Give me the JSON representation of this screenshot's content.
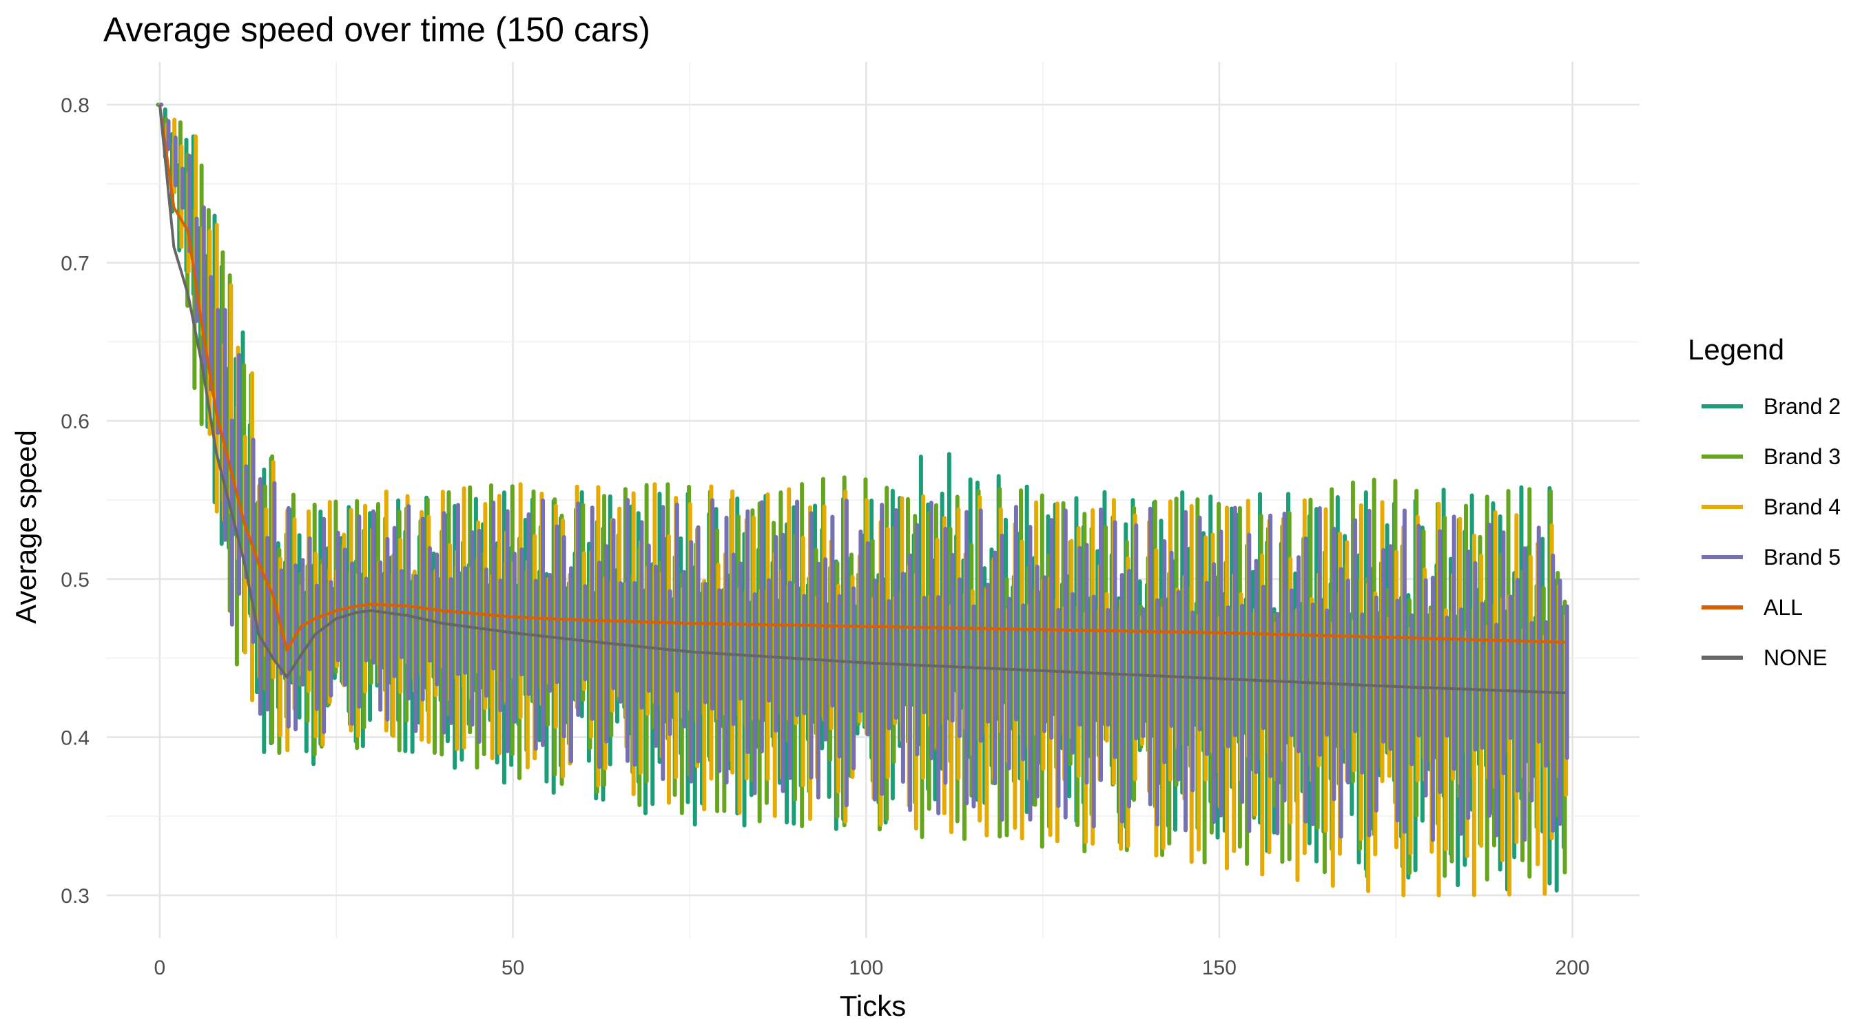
{
  "chart_data": {
    "type": "line",
    "title": "Average speed over time (150 cars)",
    "xlabel": "Ticks",
    "ylabel": "Average speed",
    "xlim": [
      -7.5,
      209.5
    ],
    "ylim": [
      0.273,
      0.827
    ],
    "x_ticks": [
      0,
      50,
      100,
      150,
      200
    ],
    "x_tick_labels": [
      "0",
      "50",
      "100",
      "150",
      "200"
    ],
    "y_ticks": [
      0.3,
      0.4,
      0.5,
      0.6,
      0.7,
      0.8
    ],
    "y_tick_labels": [
      "0.3",
      "0.4",
      "0.5",
      "0.6",
      "0.7",
      "0.8"
    ],
    "grid": true,
    "legend_title": "Legend",
    "legend_position": "right",
    "x_range": [
      0,
      199
    ],
    "series": [
      {
        "name": "Brand 2",
        "color": "#1b9e77",
        "style": "oscillating vertical segments per tick",
        "envelope": {
          "x": [
            0,
            5,
            10,
            15,
            20,
            30,
            50,
            75,
            100,
            110,
            125,
            150,
            175,
            199
          ],
          "high": [
            0.8,
            0.785,
            0.7,
            0.59,
            0.54,
            0.55,
            0.555,
            0.555,
            0.55,
            0.585,
            0.555,
            0.555,
            0.555,
            0.56
          ],
          "low": [
            0.8,
            0.63,
            0.49,
            0.39,
            0.38,
            0.395,
            0.37,
            0.345,
            0.34,
            0.36,
            0.35,
            0.335,
            0.31,
            0.3
          ]
        }
      },
      {
        "name": "Brand 3",
        "color": "#66a61e",
        "style": "oscillating vertical segments per tick",
        "envelope": {
          "x": [
            0,
            5,
            10,
            15,
            20,
            30,
            50,
            75,
            100,
            125,
            150,
            175,
            199
          ],
          "high": [
            0.8,
            0.785,
            0.71,
            0.59,
            0.545,
            0.555,
            0.56,
            0.56,
            0.565,
            0.555,
            0.55,
            0.565,
            0.555
          ],
          "low": [
            0.8,
            0.62,
            0.46,
            0.39,
            0.385,
            0.395,
            0.375,
            0.35,
            0.34,
            0.33,
            0.32,
            0.31,
            0.31
          ]
        }
      },
      {
        "name": "Brand 4",
        "color": "#e6ab02",
        "style": "oscillating vertical segments per tick",
        "envelope": {
          "x": [
            0,
            5,
            10,
            15,
            20,
            30,
            50,
            75,
            100,
            125,
            150,
            175,
            199
          ],
          "high": [
            0.8,
            0.78,
            0.7,
            0.585,
            0.545,
            0.555,
            0.56,
            0.56,
            0.555,
            0.55,
            0.55,
            0.55,
            0.54
          ],
          "low": [
            0.8,
            0.65,
            0.47,
            0.39,
            0.39,
            0.4,
            0.38,
            0.355,
            0.345,
            0.33,
            0.315,
            0.3,
            0.3
          ]
        }
      },
      {
        "name": "Brand 5",
        "color": "#7570b3",
        "style": "oscillating vertical segments per tick",
        "envelope": {
          "x": [
            0,
            5,
            10,
            15,
            20,
            30,
            50,
            75,
            100,
            125,
            150,
            175,
            199
          ],
          "high": [
            0.8,
            0.76,
            0.66,
            0.57,
            0.535,
            0.545,
            0.55,
            0.55,
            0.55,
            0.545,
            0.545,
            0.545,
            0.53
          ],
          "low": [
            0.8,
            0.66,
            0.47,
            0.4,
            0.4,
            0.41,
            0.39,
            0.37,
            0.355,
            0.345,
            0.34,
            0.335,
            0.335
          ]
        }
      },
      {
        "name": "ALL",
        "color": "#d95f02",
        "x": [
          0,
          2,
          4,
          6,
          8,
          10,
          12,
          14,
          16,
          18,
          20,
          22,
          25,
          28,
          30,
          35,
          40,
          50,
          60,
          75,
          100,
          125,
          150,
          175,
          199
        ],
        "y": [
          0.8,
          0.735,
          0.72,
          0.66,
          0.605,
          0.57,
          0.535,
          0.51,
          0.49,
          0.455,
          0.47,
          0.475,
          0.48,
          0.483,
          0.484,
          0.483,
          0.48,
          0.476,
          0.474,
          0.472,
          0.47,
          0.468,
          0.466,
          0.463,
          0.46
        ]
      },
      {
        "name": "NONE",
        "color": "#666666",
        "x": [
          0,
          2,
          4,
          6,
          8,
          10,
          12,
          14,
          16,
          18,
          20,
          22,
          25,
          28,
          30,
          35,
          40,
          50,
          60,
          75,
          100,
          125,
          150,
          175,
          199
        ],
        "y": [
          0.8,
          0.71,
          0.68,
          0.635,
          0.58,
          0.545,
          0.51,
          0.465,
          0.45,
          0.438,
          0.452,
          0.465,
          0.475,
          0.479,
          0.48,
          0.477,
          0.472,
          0.466,
          0.461,
          0.454,
          0.447,
          0.442,
          0.437,
          0.432,
          0.428
        ]
      }
    ]
  }
}
